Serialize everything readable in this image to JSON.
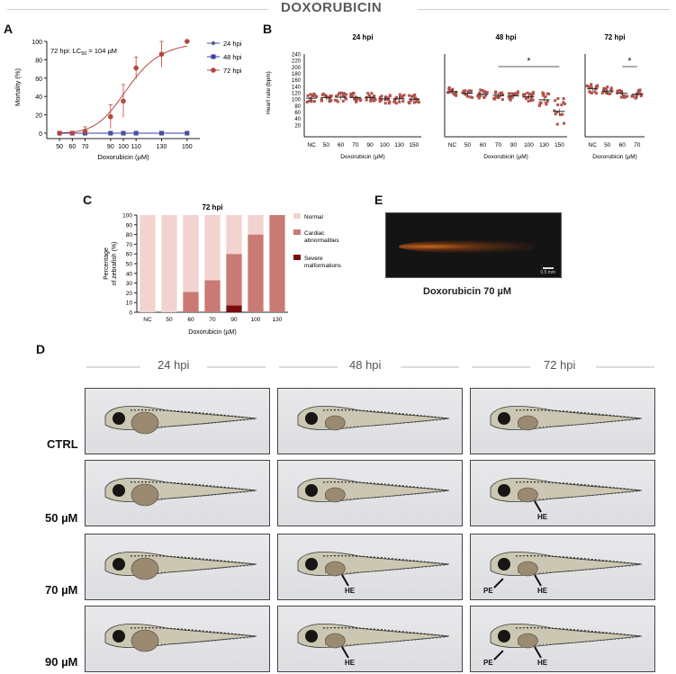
{
  "figure": {
    "title": "DOXORUBICIN",
    "panels": [
      "A",
      "B",
      "C",
      "D",
      "E"
    ]
  },
  "colors": {
    "h24": "#4a5a8c",
    "h48": "#3a3ab0",
    "h72": "#b5473a",
    "scatter": "#b0524c",
    "normal": "#f2d3cf",
    "cardiac": "#c97a74",
    "severe": "#7a0d0d"
  },
  "panel_a": {
    "annotation_prefix": "72 hpi: LC",
    "annotation_sub": "50",
    "annotation_suffix": " = 104 µM"
  },
  "panel_e": {
    "caption": "Doxorubicin 70 µM",
    "scale_bar_text": "0.5 mm"
  },
  "panel_d": {
    "columns": [
      "24 hpi",
      "48 hpi",
      "72 hpi"
    ],
    "rows": [
      "CTRL",
      "50 µM",
      "70 µM",
      "90 µM"
    ],
    "annotations": {
      "r1c2": [
        "HE"
      ],
      "r2c1": [
        "HE"
      ],
      "r2c2": [
        "PE",
        "HE"
      ],
      "r3c1": [
        "HE"
      ],
      "r3c2": [
        "PE",
        "HE"
      ]
    }
  },
  "chart_data": [
    {
      "id": "A",
      "type": "line",
      "x": [
        50,
        60,
        70,
        90,
        100,
        110,
        130,
        150
      ],
      "tick_labels": [
        "50",
        "60",
        "70",
        "90",
        "100",
        "110",
        "130",
        "150"
      ],
      "xlim": [
        40,
        160
      ],
      "ylim": [
        0,
        100
      ],
      "yticks": [
        0,
        20,
        40,
        60,
        80,
        100
      ],
      "xlabel": "Doxorubicin (µM)",
      "ylabel": "Mortality (%)",
      "legend_position": "top-right",
      "series": [
        {
          "name": "24 hpi",
          "values": [
            0,
            0,
            0,
            0,
            0,
            0,
            0,
            0
          ],
          "err": [
            0,
            0,
            0,
            0,
            0,
            0,
            0,
            0
          ]
        },
        {
          "name": "48 hpi",
          "values": [
            0,
            0,
            0,
            0,
            0,
            0,
            0,
            0
          ],
          "err": [
            0,
            0,
            0,
            0,
            0,
            0,
            0,
            0
          ]
        },
        {
          "name": "72 hpi",
          "values": [
            0,
            0,
            2,
            18,
            35,
            71,
            86,
            100
          ],
          "err": [
            0,
            0,
            5,
            13,
            18,
            12,
            14,
            0
          ]
        }
      ],
      "fit": {
        "series": "72 hpi",
        "lc50": 104,
        "hill": 8
      }
    },
    {
      "id": "B",
      "type": "scatter",
      "ylabel": "Heart rate (bpm)",
      "xlabel": "Doxorubicin (µM)",
      "ylim": [
        0,
        240
      ],
      "yticks": [
        20,
        40,
        60,
        80,
        100,
        120,
        140,
        160,
        180,
        200,
        220,
        240
      ],
      "groups": [
        {
          "title": "24 hpi",
          "categories": [
            "NC",
            "50",
            "60",
            "70",
            "90",
            "100",
            "130",
            "150"
          ],
          "means": [
            103,
            105,
            106,
            105,
            105,
            101,
            101,
            100
          ]
        },
        {
          "title": "48 hpi",
          "categories": [
            "NC",
            "50",
            "60",
            "70",
            "90",
            "100",
            "130",
            "150"
          ],
          "means": [
            123,
            118,
            115,
            112,
            110,
            108,
            98,
            62
          ],
          "significance": {
            "from": "70",
            "to": "150",
            "label": "*"
          }
        },
        {
          "title": "72 hpi",
          "categories": [
            "NC",
            "50",
            "60",
            "70"
          ],
          "means": [
            132,
            125,
            118,
            115
          ],
          "significance": {
            "from": "60",
            "to": "70",
            "label": "*"
          }
        }
      ]
    },
    {
      "id": "C",
      "type": "bar",
      "title": "72 hpi",
      "categories": [
        "NC",
        "50",
        "60",
        "70",
        "90",
        "100",
        "130"
      ],
      "series": [
        {
          "name": "Severe malformations",
          "values": [
            0,
            0,
            0,
            0,
            7,
            0,
            0
          ]
        },
        {
          "name": "Cardiac abnormalities",
          "values": [
            0,
            0,
            21,
            33,
            53,
            80,
            100
          ]
        },
        {
          "name": "Normal",
          "values": [
            100,
            100,
            79,
            67,
            40,
            20,
            0
          ]
        }
      ],
      "legend": [
        "Normal",
        "Cardiac abnormalities",
        "Severe malformations"
      ],
      "legend_position": "right",
      "ylim": [
        0,
        100
      ],
      "yticks": [
        0,
        10,
        20,
        30,
        40,
        50,
        60,
        70,
        80,
        90,
        100
      ],
      "xlabel": "Doxorubicin (µM)",
      "ylabel": "Percentage of zebrafish (%)"
    }
  ]
}
